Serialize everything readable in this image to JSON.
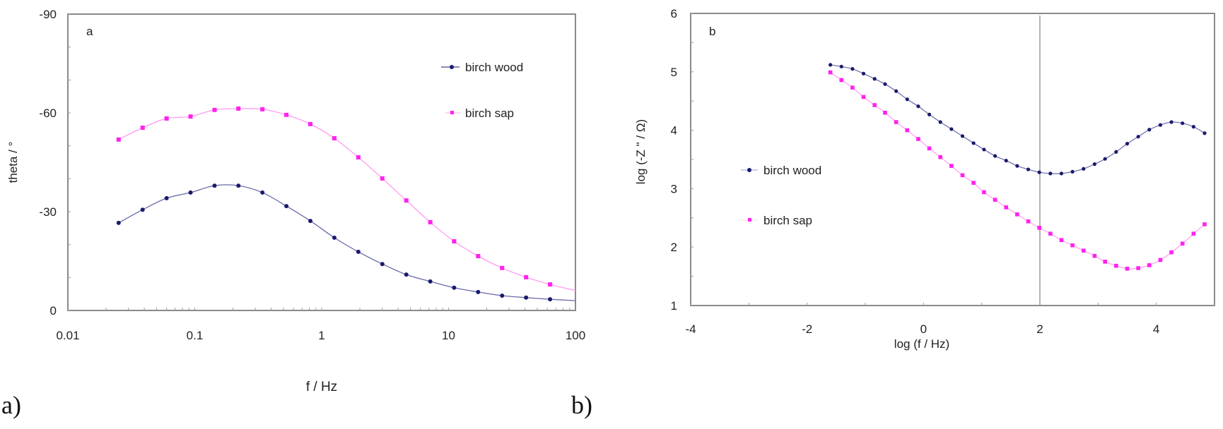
{
  "figure": {
    "captions": [
      "a)",
      "b)"
    ]
  },
  "colors": {
    "birch_wood": "#1a1a6e",
    "birch_sap": "#ff22ee",
    "axis": "#888888",
    "text": "#222222"
  },
  "chart_data": [
    {
      "panel": "a",
      "type": "line",
      "panel_label": "a",
      "title": "",
      "xlabel": "f / Hz",
      "ylabel": "theta / °",
      "xscale": "log",
      "xlim": [
        0.01,
        100
      ],
      "ylim": [
        0,
        -90
      ],
      "xticks": [
        "0.01",
        "0.1",
        "1",
        "10",
        "100"
      ],
      "yticks": [
        "0",
        "-30",
        "-60",
        "-90"
      ],
      "grid": false,
      "legend_position": "upper right",
      "x_log10": [
        -1.6,
        -1.411,
        -1.222,
        -1.033,
        -0.844,
        -0.656,
        -0.467,
        -0.278,
        -0.089,
        0.1,
        0.289,
        0.478,
        0.667,
        0.856,
        1.044,
        1.233,
        1.422,
        1.611,
        1.8
      ],
      "x": [
        0.025,
        0.039,
        0.06,
        0.093,
        0.143,
        0.221,
        0.341,
        0.527,
        0.815,
        1.26,
        1.94,
        3.0,
        4.64,
        7.17,
        11.1,
        17.1,
        26.4,
        40.8,
        63.1
      ],
      "series": [
        {
          "name": "birch wood",
          "color": "#1a1a6e",
          "values": [
            -26.6,
            -30.6,
            -34.1,
            -35.8,
            -37.9,
            -37.9,
            -35.8,
            -31.7,
            -27.2,
            -22.1,
            -17.8,
            -14.1,
            -10.9,
            -8.8,
            -6.9,
            -5.6,
            -4.5,
            -3.9,
            -3.4
          ]
        },
        {
          "name": "birch sap",
          "color": "#ff22ee",
          "values": [
            -51.9,
            -55.5,
            -58.3,
            -58.9,
            -60.9,
            -61.3,
            -61.1,
            -59.4,
            -56.6,
            -52.3,
            -46.5,
            -40.1,
            -33.4,
            -26.8,
            -21.0,
            -16.5,
            -12.9,
            -10.1,
            -7.9
          ]
        }
      ]
    },
    {
      "panel": "b",
      "type": "line",
      "panel_label": "b",
      "title": "",
      "xlabel": "log (f / Hz)",
      "ylabel": "log (-Z \" / Ω)",
      "xlim": [
        -4,
        5
      ],
      "ylim": [
        1,
        6
      ],
      "xticks": [
        "-4",
        "-2",
        "0",
        "2",
        "4"
      ],
      "yticks": [
        "1",
        "2",
        "3",
        "4",
        "5",
        "6"
      ],
      "grid": false,
      "vertical_reference_line": 2,
      "legend_position": "center left",
      "x": [
        -1.6,
        -1.41,
        -1.22,
        -1.03,
        -0.84,
        -0.66,
        -0.47,
        -0.28,
        -0.09,
        0.1,
        0.29,
        0.48,
        0.67,
        0.86,
        1.04,
        1.23,
        1.42,
        1.61,
        1.8,
        1.99,
        2.18,
        2.37,
        2.56,
        2.75,
        2.94,
        3.12,
        3.31,
        3.5,
        3.69,
        3.88,
        4.07,
        4.26,
        4.45,
        4.64,
        4.83
      ],
      "series": [
        {
          "name": "birch wood",
          "color": "#1a1a6e",
          "values": [
            5.12,
            5.09,
            5.05,
            4.97,
            4.88,
            4.79,
            4.67,
            4.53,
            4.41,
            4.27,
            4.14,
            4.02,
            3.9,
            3.78,
            3.67,
            3.56,
            3.48,
            3.39,
            3.33,
            3.28,
            3.26,
            3.26,
            3.29,
            3.34,
            3.42,
            3.51,
            3.63,
            3.77,
            3.89,
            4.01,
            4.09,
            4.14,
            4.12,
            4.06,
            3.95
          ]
        },
        {
          "name": "birch sap",
          "color": "#ff22ee",
          "values": [
            4.99,
            4.86,
            4.73,
            4.57,
            4.43,
            4.3,
            4.14,
            4.0,
            3.85,
            3.69,
            3.54,
            3.39,
            3.23,
            3.1,
            2.94,
            2.81,
            2.68,
            2.56,
            2.44,
            2.33,
            2.23,
            2.12,
            2.03,
            1.94,
            1.85,
            1.75,
            1.68,
            1.63,
            1.64,
            1.69,
            1.78,
            1.91,
            2.06,
            2.23,
            2.39
          ]
        }
      ]
    }
  ]
}
